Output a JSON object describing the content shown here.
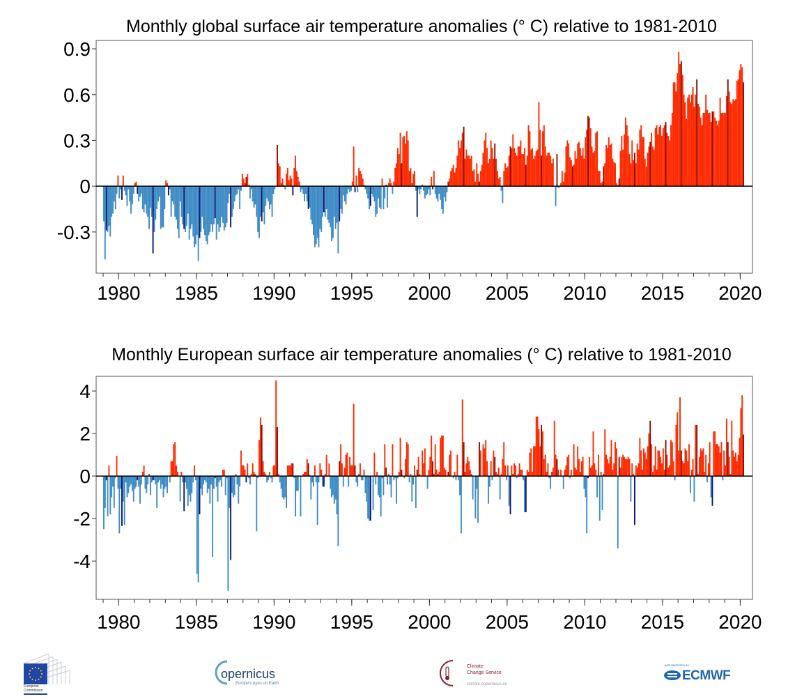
{
  "colors": {
    "positive": "#ff2a00",
    "positive_highlight": "#8a0c00",
    "negative": "#3f8cc6",
    "negative_highlight": "#0b1870",
    "zero_line": "#000000",
    "frame": "#555555"
  },
  "chart_data": [
    {
      "type": "bar",
      "title": "Monthly  global surface air temperature anomalies (° C) relative to 1981-2010",
      "xlabel": "",
      "ylabel": "",
      "x_start": "1979-01",
      "x_step": "month",
      "xlim": [
        1978.55,
        2020.79
      ],
      "ylim": [
        -0.57,
        0.955
      ],
      "xticks": [
        1980,
        1985,
        1990,
        1995,
        2000,
        2005,
        2010,
        2015,
        2020
      ],
      "xtick_labels": [
        "1980",
        "1985",
        "1990",
        "1995",
        "2000",
        "2005",
        "2010",
        "2015",
        "2020"
      ],
      "yticks": [
        0.9,
        0.6,
        0.3,
        0,
        -0.3
      ],
      "ytick_labels": [
        "0.9",
        "0.6",
        "0.3",
        "0",
        "-0.3"
      ],
      "grid": false,
      "values": [
        -0.23,
        -0.48,
        -0.29,
        -0.3,
        -0.26,
        -0.33,
        -0.2,
        -0.18,
        -0.1,
        -0.15,
        -0.05,
        0.07,
        -0.08,
        -0.02,
        -0.09,
        0.07,
        -0.03,
        -0.06,
        -0.13,
        -0.02,
        -0.1,
        -0.18,
        -0.12,
        -0.05,
        0.02,
        0.03,
        -0.05,
        -0.1,
        -0.07,
        -0.05,
        -0.15,
        -0.17,
        -0.12,
        -0.18,
        -0.2,
        -0.28,
        -0.14,
        -0.2,
        -0.44,
        -0.3,
        -0.22,
        -0.15,
        -0.1,
        -0.07,
        -0.28,
        -0.27,
        -0.27,
        -0.15,
        0.04,
        0.02,
        -0.06,
        -0.02,
        -0.2,
        -0.1,
        -0.12,
        -0.2,
        -0.22,
        -0.28,
        -0.34,
        -0.1,
        -0.2,
        -0.25,
        -0.28,
        -0.3,
        -0.26,
        -0.18,
        -0.35,
        -0.28,
        -0.25,
        -0.33,
        -0.4,
        -0.38,
        -0.32,
        -0.49,
        -0.34,
        -0.3,
        -0.2,
        -0.28,
        -0.32,
        -0.36,
        -0.38,
        -0.32,
        -0.3,
        -0.25,
        -0.3,
        -0.25,
        -0.21,
        -0.35,
        -0.25,
        -0.3,
        -0.27,
        -0.2,
        -0.24,
        -0.29,
        -0.27,
        -0.24,
        -0.11,
        -0.05,
        -0.27,
        -0.2,
        -0.15,
        -0.1,
        -0.06,
        -0.05,
        -0.02,
        -0.15,
        -0.03,
        0.08,
        0.05,
        0.02,
        0.06,
        0.08,
        0.01,
        -0.08,
        -0.02,
        -0.1,
        -0.14,
        -0.12,
        -0.2,
        -0.3,
        -0.34,
        -0.2,
        -0.23,
        -0.17,
        -0.25,
        -0.13,
        -0.08,
        -0.1,
        -0.15,
        -0.12,
        -0.2,
        -0.05,
        -0.02,
        0.0,
        0.27,
        0.15,
        0.13,
        0.02,
        0.05,
        0.01,
        -0.02,
        0.08,
        0.12,
        0.04,
        0.07,
        0.05,
        -0.06,
        0.12,
        0.2,
        0.1,
        0.06,
        0.03,
        -0.04,
        -0.02,
        -0.05,
        -0.1,
        -0.05,
        -0.1,
        -0.15,
        -0.14,
        -0.22,
        -0.25,
        -0.32,
        -0.4,
        -0.38,
        -0.34,
        -0.4,
        -0.28,
        -0.3,
        -0.2,
        -0.17,
        -0.2,
        -0.15,
        -0.22,
        -0.24,
        -0.27,
        -0.36,
        -0.34,
        -0.2,
        -0.28,
        -0.24,
        -0.44,
        -0.23,
        -0.15,
        -0.18,
        -0.06,
        -0.1,
        -0.12,
        -0.05,
        -0.02,
        -0.04,
        -0.03,
        0.03,
        0.26,
        -0.04,
        0.07,
        -0.04,
        0.12,
        0.1,
        0.08,
        0.05,
        0.01,
        -0.02,
        -0.05,
        -0.08,
        -0.15,
        -0.13,
        -0.05,
        -0.07,
        -0.1,
        -0.2,
        -0.18,
        -0.08,
        -0.14,
        -0.15,
        0.05,
        -0.15,
        -0.08,
        0.01,
        -0.14,
        0.02,
        0.05,
        0.02,
        -0.05,
        0.03,
        0.12,
        0.15,
        0.25,
        0.21,
        0.35,
        0.15,
        0.32,
        0.33,
        0.28,
        0.36,
        0.3,
        0.1,
        0.12,
        0.02,
        0.08,
        0.1,
        -0.03,
        -0.2,
        -0.02,
        -0.05,
        -0.02,
        0.01,
        -0.03,
        -0.08,
        -0.06,
        -0.05,
        -0.02,
        -0.06,
        0.06,
        -0.02,
        0.1,
        -0.05,
        -0.08,
        -0.1,
        -0.05,
        -0.09,
        -0.15,
        -0.18,
        -0.07,
        -0.1,
        -0.04,
        0.03,
        0.05,
        0.1,
        0.12,
        0.14,
        0.09,
        0.12,
        0.2,
        0.3,
        0.25,
        0.3,
        0.35,
        0.39,
        0.18,
        0.24,
        0.2,
        0.2,
        0.18,
        0.2,
        0.1,
        0.11,
        0.03,
        0.15,
        0.08,
        0.03,
        0.1,
        0.14,
        0.22,
        0.3,
        0.35,
        0.25,
        0.15,
        0.18,
        0.3,
        0.25,
        0.18,
        0.28,
        0.18,
        0.1,
        0.05,
        0.06,
        -0.03,
        -0.11,
        0.1,
        0.15,
        0.12,
        0.13,
        0.2,
        0.26,
        0.25,
        0.34,
        0.25,
        0.22,
        0.2,
        0.26,
        0.26,
        0.3,
        0.21,
        0.21,
        0.25,
        0.14,
        0.2,
        0.4,
        0.36,
        0.24,
        0.25,
        0.18,
        0.2,
        0.23,
        0.24,
        0.55,
        0.37,
        0.2,
        0.36,
        0.4,
        0.26,
        0.2,
        0.22,
        0.22,
        0.2,
        0.15,
        0.18,
        0.0,
        -0.13,
        0.21,
        -0.01,
        -0.01,
        0.02,
        0.1,
        0.03,
        0.09,
        0.26,
        0.3,
        0.28,
        0.19,
        0.17,
        0.13,
        0.14,
        0.23,
        0.18,
        0.28,
        0.29,
        0.25,
        0.2,
        0.25,
        0.18,
        0.32,
        0.37,
        0.46,
        0.45,
        0.38,
        0.26,
        0.22,
        0.23,
        0.35,
        0.36,
        0.1,
        0.1,
        0.02,
        0.03,
        0.13,
        0.15,
        0.27,
        0.25,
        0.32,
        0.27,
        0.28,
        0.18,
        0.16,
        0.15,
        0.02,
        0.01,
        0.05,
        0.23,
        0.33,
        0.24,
        0.34,
        0.45,
        0.4,
        0.33,
        0.21,
        0.15,
        0.3,
        0.17,
        0.22,
        0.15,
        0.28,
        0.24,
        0.37,
        0.4,
        0.32,
        0.32,
        0.18,
        0.13,
        0.22,
        0.26,
        0.29,
        0.35,
        0.26,
        0.24,
        0.38,
        0.4,
        0.34,
        0.39,
        0.4,
        0.33,
        0.38,
        0.4,
        0.42,
        0.35,
        0.33,
        0.3,
        0.4,
        0.48,
        0.68,
        0.68,
        0.62,
        0.74,
        0.88,
        0.8,
        0.82,
        0.73,
        0.6,
        0.55,
        0.44,
        0.58,
        0.6,
        0.55,
        0.6,
        0.65,
        0.52,
        0.6,
        0.7,
        0.54,
        0.52,
        0.45,
        0.4,
        0.48,
        0.48,
        0.6,
        0.5,
        0.48,
        0.48,
        0.42,
        0.49,
        0.49,
        0.45,
        0.43,
        0.4,
        0.43,
        0.58,
        0.48,
        0.48,
        0.48,
        0.48,
        0.59,
        0.7,
        0.62,
        0.55,
        0.54,
        0.57,
        0.56,
        0.57,
        0.69,
        0.7,
        0.76,
        0.8,
        0.78,
        0.68
      ]
    },
    {
      "type": "bar",
      "title": "Monthly  European surface air temperature anomalies (° C) relative to 1981-2010",
      "xlabel": "",
      "ylabel": "",
      "x_start": "1979-01",
      "x_step": "month",
      "xlim": [
        1978.55,
        2020.79
      ],
      "ylim": [
        -5.8,
        4.69
      ],
      "xticks": [
        1980,
        1985,
        1990,
        1995,
        2000,
        2005,
        2010,
        2015,
        2020
      ],
      "xtick_labels": [
        "1980",
        "1985",
        "1990",
        "1995",
        "2000",
        "2005",
        "2010",
        "2015",
        "2020"
      ],
      "yticks": [
        4,
        2,
        0,
        -2,
        -4
      ],
      "ytick_labels": [
        "4",
        "2",
        "0",
        "-2",
        "-4"
      ],
      "grid": false,
      "values": [
        -2.5,
        -1.5,
        -0.2,
        -1.9,
        0.5,
        -1.8,
        -1.0,
        -0.5,
        -1.5,
        -0.1,
        0.95,
        -0.6,
        -2.7,
        -0.6,
        -2.35,
        -1.2,
        -2.3,
        -0.3,
        -1.0,
        -0.8,
        -0.5,
        -0.4,
        -0.7,
        -1.2,
        -0.6,
        -0.5,
        -0.2,
        -0.5,
        -1.3,
        -0.4,
        0.2,
        0.5,
        -0.6,
        -0.8,
        -0.4,
        0.1,
        -0.9,
        -0.3,
        -0.2,
        -0.2,
        -0.4,
        -1.5,
        -0.3,
        -0.2,
        -0.6,
        -0.4,
        -1.0,
        -0.6,
        -0.5,
        -0.8,
        0.0,
        -0.3,
        0.7,
        0.7,
        1.5,
        1.6,
        0.5,
        0.2,
        0.0,
        -1.2,
        0.2,
        -0.3,
        -1.65,
        -0.3,
        -0.6,
        -1.4,
        -0.9,
        -1.2,
        -0.8,
        -0.3,
        0.5,
        -0.2,
        -4.6,
        -5.0,
        -1.8,
        -0.6,
        -0.9,
        -0.4,
        -0.2,
        -0.3,
        -0.8,
        -0.6,
        -1.3,
        -0.4,
        -3.8,
        -0.6,
        -0.1,
        -0.5,
        -1.2,
        -0.3,
        -0.2,
        -0.5,
        0.3,
        0.3,
        -0.9,
        -0.1,
        -5.4,
        -1.5,
        -3.95,
        -0.8,
        -1.0,
        -0.9,
        0.1,
        -0.4,
        -1.3,
        -0.5,
        1.2,
        0.5,
        0.5,
        0.3,
        -0.3,
        0.6,
        -0.1,
        -0.4,
        0.1,
        0.6,
        0.2,
        0.1,
        -2.6,
        -0.1,
        1.7,
        2.75,
        2.4,
        0.7,
        0.2,
        0.1,
        -0.3,
        -0.2,
        0.2,
        -0.1,
        -0.3,
        0.5,
        0.5,
        4.5,
        2.3,
        0.1,
        -0.3,
        -0.6,
        -1.0,
        -1.1,
        -1.0,
        -1.5,
        0.5,
        0.5,
        0.5,
        0.6,
        0.6,
        -0.1,
        -1.9,
        -0.7,
        -0.7,
        0.0,
        -1.9,
        0.0,
        0.1,
        0.2,
        0.2,
        0.8,
        0.6,
        0.05,
        -1.1,
        -0.3,
        -0.5,
        0.5,
        -0.3,
        -2.3,
        -0.3,
        0.6,
        0.3,
        -0.5,
        -0.5,
        0.1,
        1.0,
        0.0,
        0.6,
        -0.6,
        -1.0,
        -0.9,
        -1.3,
        -1.1,
        -1.8,
        -3.3,
        0.7,
        1.5,
        0.6,
        -0.5,
        0.4,
        1.0,
        1.1,
        -0.5,
        0.9,
        0.5,
        0.5,
        3.4,
        0.5,
        -0.3,
        -0.5,
        0.1,
        0.6,
        -0.2,
        -0.2,
        0.3,
        -0.8,
        -1.2,
        -2.0,
        -2.1,
        -2.1,
        0.0,
        -1.6,
        1.1,
        -0.4,
        0.2,
        -0.9,
        -1.0,
        -1.9,
        -0.1,
        -0.9,
        1.5,
        0.4,
        -0.4,
        0.1,
        -0.4,
        -1.0,
        1.5,
        -0.2,
        -0.1,
        -1.3,
        -0.1,
        0.2,
        1.8,
        0.3,
        0.0,
        -0.1,
        0.8,
        1.6,
        1.5,
        -0.3,
        0.1,
        -1.2,
        -0.4,
        0.5,
        -1.5,
        0.3,
        0.9,
        0.1,
        0.0,
        1.2,
        0.6,
        1.3,
        0.0,
        -0.6,
        0.3,
        0.9,
        1.9,
        0.7,
        0.1,
        1.5,
        0.3,
        0.1,
        0.2,
        1.8,
        1.9,
        1.9,
        0.4,
        0.3,
        0.0,
        0.2,
        1.0,
        1.2,
        0.0,
        -0.1,
        0.2,
        -0.2,
        1.0,
        -0.2,
        -0.9,
        -2.7,
        3.6,
        1.6,
        0.2,
        0.6,
        0.9,
        0.7,
        0.3,
        0.1,
        -1.1,
        0.0,
        -2.0,
        -0.6,
        -2.2,
        1.6,
        1.2,
        0.0,
        1.5,
        1.3,
        1.7,
        0.7,
        -1.3,
        -0.5,
        0.7,
        -0.2,
        1.2,
        0.9,
        0.2,
        0.1,
        0.4,
        -1.1,
        0.1,
        0.8,
        1.6,
        0.5,
        -0.2,
        0.5,
        -1.4,
        -1.8,
        0.5,
        0.1,
        0.6,
        0.5,
        -0.1,
        0.1,
        0.6,
        0.3,
        0.3,
        -0.2,
        -1.7,
        -1.7,
        0.3,
        0.2,
        1.1,
        1.3,
        0.2,
        1.4,
        1.4,
        2.8,
        2.8,
        2.2,
        1.4,
        2.4,
        2.1,
        0.8,
        1.0,
        0.2,
        0.6,
        -0.1,
        -0.6,
        0.2,
        0.4,
        2.6,
        1.0,
        0.8,
        0.3,
        0.0,
        0.3,
        0.0,
        -0.6,
        0.3,
        0.5,
        0.9,
        1.0,
        -0.1,
        0.3,
        0.0,
        1.5,
        0.4,
        0.3,
        1.4,
        0.8,
        0.2,
        0.7,
        0.9,
        -0.6,
        -1.0,
        -2.7,
        -0.1,
        0.9,
        0.4,
        0.5,
        2.1,
        0.6,
        0.3,
        -1.0,
        1.0,
        -2.1,
        0.2,
        -1.6,
        0.1,
        2.2,
        1.0,
        0.8,
        0.6,
        0.9,
        1.7,
        0.3,
        0.6,
        1.6,
        1.3,
        -3.4,
        0.9,
        0.4,
        0.9,
        1.0,
        0.9,
        0.8,
        0.8,
        0.9,
        0.8,
        -1.2,
        0.6,
        0.1,
        -2.3,
        0.5,
        0.4,
        0.6,
        1.8,
        1.2,
        0.3,
        1.3,
        1.1,
        0.8,
        1.4,
        2.0,
        2.6,
        1.5,
        0.2,
        0.5,
        1.4,
        0.3,
        1.2,
        1.2,
        0.9,
        0.6,
        1.3,
        0.3,
        1.7,
        1.0,
        0.4,
        0.5,
        1.7,
        1.6,
        0.7,
        -0.2,
        2.4,
        3.0,
        1.2,
        3.7,
        1.2,
        0.7,
        0.6,
        1.3,
        1.2,
        0.7,
        1.5,
        -0.8,
        0.3,
        0.8,
        -1.2,
        2.4,
        2.4,
        0.1,
        0.9,
        1.3,
        1.2,
        1.3,
        0.2,
        1.0,
        -0.3,
        0.6,
        1.6,
        -1.0,
        -1.4,
        2.1,
        2.1,
        1.5,
        1.5,
        1.4,
        1.1,
        1.6,
        -0.2,
        1.2,
        0.5,
        2.7,
        1.6,
        0.9,
        0.1,
        2.6,
        1.2,
        0.9,
        1.1,
        0.7,
        1.0,
        1.8,
        3.2,
        3.8,
        1.95
      ]
    }
  ],
  "logos": {
    "ec": {
      "line1": "European",
      "line2": "Commission"
    },
    "copernicus": {
      "name": "opernicus",
      "tagline": "Europe's eyes on Earth"
    },
    "c3s": {
      "line1": "Climate",
      "line2": "Change Service",
      "url": "climate.copernicus.eu"
    },
    "ecmwf": {
      "top": "IMPLEMENTED BY",
      "name": "ECMWF"
    }
  }
}
